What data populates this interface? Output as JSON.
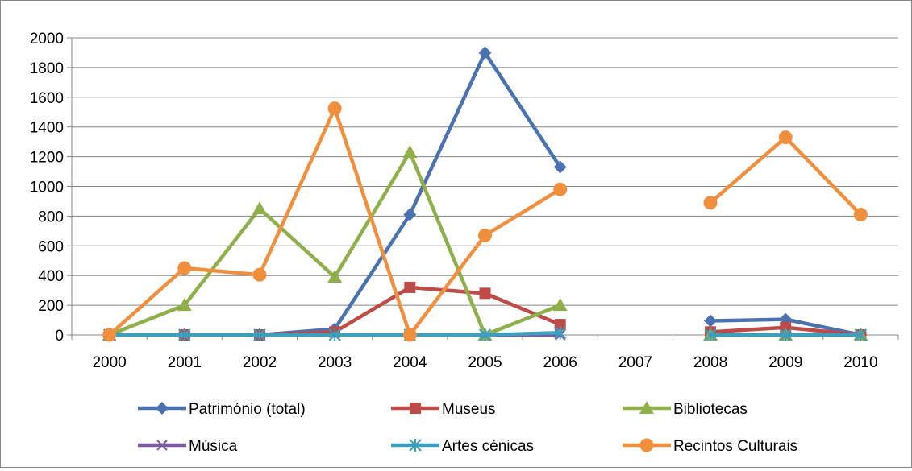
{
  "chart_data": {
    "type": "line",
    "title": "",
    "xlabel": "",
    "ylabel": "",
    "ylim": [
      0,
      2000
    ],
    "yticks": [
      0,
      200,
      400,
      600,
      800,
      1000,
      1200,
      1400,
      1600,
      1800,
      2000
    ],
    "grid": true,
    "legend_position": "bottom",
    "categories": [
      "2000",
      "2001",
      "2002",
      "2003",
      "2004",
      "2005",
      "2006",
      "2007",
      "2008",
      "2009",
      "2010"
    ],
    "series": [
      {
        "name": "Património (total)",
        "color": "#4a72b0",
        "marker": "diamond",
        "values": [
          0,
          0,
          0,
          40,
          810,
          1900,
          1130,
          null,
          95,
          105,
          0
        ]
      },
      {
        "name": "Museus",
        "color": "#be4b48",
        "marker": "square",
        "values": [
          0,
          0,
          0,
          20,
          320,
          280,
          70,
          null,
          20,
          50,
          0
        ]
      },
      {
        "name": "Bibliotecas",
        "color": "#8faf4a",
        "marker": "triangle",
        "values": [
          0,
          200,
          850,
          390,
          1230,
          0,
          200,
          null,
          0,
          0,
          0
        ]
      },
      {
        "name": "Música",
        "color": "#7b5a9e",
        "marker": "x",
        "values": [
          0,
          0,
          0,
          0,
          0,
          0,
          0,
          null,
          0,
          0,
          0
        ]
      },
      {
        "name": "Artes cénicas",
        "color": "#3d9fbe",
        "marker": "asterisk",
        "values": [
          0,
          0,
          0,
          0,
          0,
          0,
          15,
          null,
          0,
          0,
          0
        ]
      },
      {
        "name": "Recintos Culturais",
        "color": "#f0903e",
        "marker": "circle",
        "values": [
          0,
          450,
          405,
          1525,
          0,
          670,
          980,
          null,
          890,
          1330,
          810
        ]
      }
    ]
  }
}
